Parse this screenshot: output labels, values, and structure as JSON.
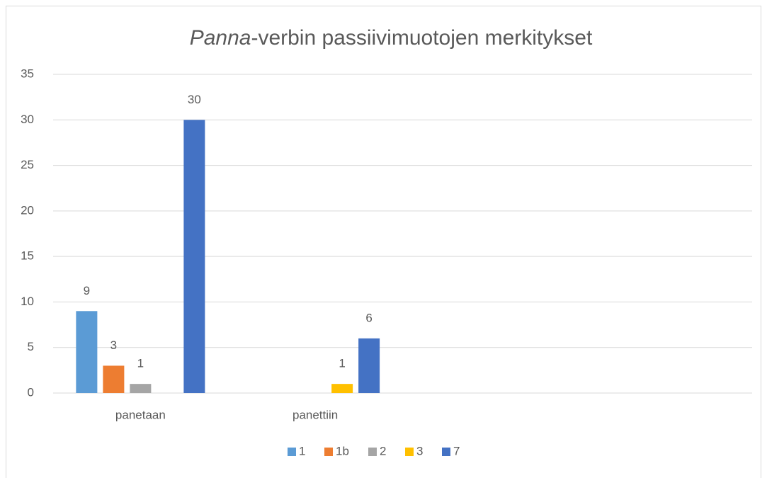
{
  "chart_data": {
    "type": "bar",
    "title": [
      {
        "text": "Panna",
        "italic": true
      },
      {
        "text": "-verbin passiivimuotojen merkitykset",
        "italic": false
      }
    ],
    "categories": [
      "panetaan",
      "panettiin",
      null,
      null
    ],
    "series": [
      {
        "name": "1",
        "color": "#5b9bd5",
        "values": [
          9,
          null,
          null,
          null
        ]
      },
      {
        "name": "1b",
        "color": "#ed7d31",
        "values": [
          3,
          null,
          null,
          null
        ]
      },
      {
        "name": "2",
        "color": "#a5a5a5",
        "values": [
          1,
          null,
          null,
          null
        ]
      },
      {
        "name": "3",
        "color": "#ffc000",
        "values": [
          null,
          1,
          null,
          null
        ]
      },
      {
        "name": "7",
        "color": "#4472c4",
        "values": [
          30,
          6,
          null,
          null
        ]
      }
    ],
    "ylim": [
      0,
      35
    ],
    "yticks": [
      0,
      5,
      10,
      15,
      20,
      25,
      30,
      35
    ],
    "grid": true,
    "legend": "bottom",
    "data_labels": true
  }
}
